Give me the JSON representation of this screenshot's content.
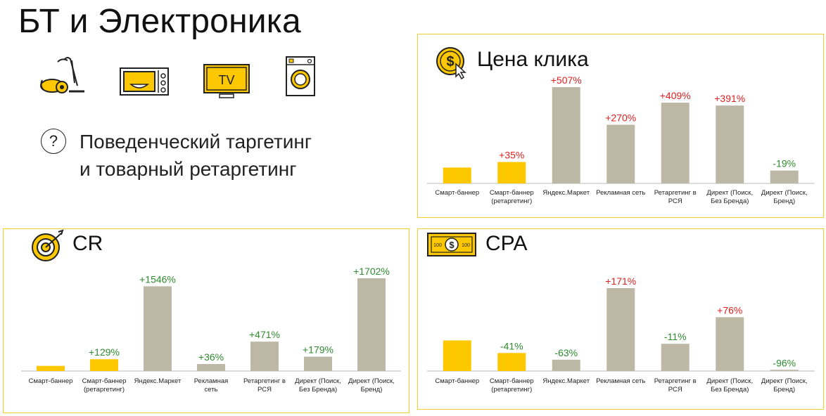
{
  "page": {
    "title": "БТ и Электроника",
    "subtitle_line1": "Поведенческий таргетинг",
    "subtitle_line2": "и товарный ретаргетинг",
    "question_mark": "?",
    "tv_icon_text": "TV"
  },
  "icons": [
    "vacuum-cleaner-icon",
    "microwave-icon",
    "tv-icon",
    "washing-machine-icon",
    "dollar-coin-cursor-icon",
    "target-icon",
    "banknote-icon"
  ],
  "colors": {
    "highlight": "#fdc800",
    "bar_gray": "#bdb8a6",
    "positive": "#2e8b2e",
    "negative": "#e02020",
    "border": "#f2cd2c"
  },
  "panels": {
    "cpc_title": "Цена клика",
    "cr_title": "CR",
    "cpa_title": "CPA"
  },
  "chart_data": [
    {
      "id": "cpc",
      "type": "bar",
      "title": "Цена клика",
      "categories": [
        [
          "Смарт-баннер"
        ],
        [
          "Смарт-баннер",
          "(ретаргетинг)"
        ],
        [
          "Яндекс.Маркет"
        ],
        [
          "Рекламная сеть"
        ],
        [
          "Ретаргетинг в",
          "РСЯ"
        ],
        [
          "Директ (Поиск,",
          "Без Бренда)"
        ],
        [
          "Директ (Поиск,",
          "Бренд)"
        ]
      ],
      "values": [
        1.0,
        1.35,
        6.07,
        3.7,
        5.09,
        4.91,
        0.81
      ],
      "labels": [
        "",
        "+35%",
        "+507%",
        "+270%",
        "+409%",
        "+391%",
        "-19%"
      ],
      "label_colors": [
        "",
        "#e02020",
        "#e02020",
        "#e02020",
        "#e02020",
        "#e02020",
        "#2e8b2e"
      ],
      "highlight": [
        true,
        true,
        false,
        false,
        false,
        false,
        false
      ]
    },
    {
      "id": "cr",
      "type": "bar",
      "title": "CR",
      "categories": [
        [
          "Смарт-баннер"
        ],
        [
          "Смарт-баннер",
          "(ретаргетинг)"
        ],
        [
          "Яндекс.Маркет"
        ],
        [
          "Рекламная",
          "сеть"
        ],
        [
          "Ретаргетинг в",
          "РСЯ"
        ],
        [
          "Директ (Поиск,",
          "Без Бренда)"
        ],
        [
          "Директ (Поиск,",
          "Бренд)"
        ]
      ],
      "values": [
        1.0,
        2.29,
        16.46,
        1.36,
        5.71,
        2.79,
        18.02
      ],
      "labels": [
        "",
        "+129%",
        "+1546%",
        "+36%",
        "+471%",
        "+179%",
        "+1702%"
      ],
      "label_colors": [
        "",
        "#2e8b2e",
        "#2e8b2e",
        "#2e8b2e",
        "#2e8b2e",
        "#2e8b2e",
        "#2e8b2e"
      ],
      "highlight": [
        true,
        true,
        false,
        false,
        false,
        false,
        false
      ]
    },
    {
      "id": "cpa",
      "type": "bar",
      "title": "CPA",
      "categories": [
        [
          "Смарт-баннер"
        ],
        [
          "Смарт-баннер",
          "(ретаргетинг)"
        ],
        [
          "Яндекс.Маркет"
        ],
        [
          "Рекламная сеть"
        ],
        [
          "Ретаргетинг в",
          "РСЯ"
        ],
        [
          "Директ (Поиск,",
          "Без Бренда)"
        ],
        [
          "Директ (Поиск,",
          "Бренд)"
        ]
      ],
      "values": [
        1.0,
        0.59,
        0.37,
        2.71,
        0.89,
        1.76,
        0.04
      ],
      "labels": [
        "",
        "-41%",
        "-63%",
        "+171%",
        "-11%",
        "+76%",
        "-96%"
      ],
      "label_colors": [
        "",
        "#2e8b2e",
        "#2e8b2e",
        "#e02020",
        "#2e8b2e",
        "#e02020",
        "#2e8b2e"
      ],
      "highlight": [
        true,
        true,
        false,
        false,
        false,
        false,
        false
      ]
    }
  ]
}
